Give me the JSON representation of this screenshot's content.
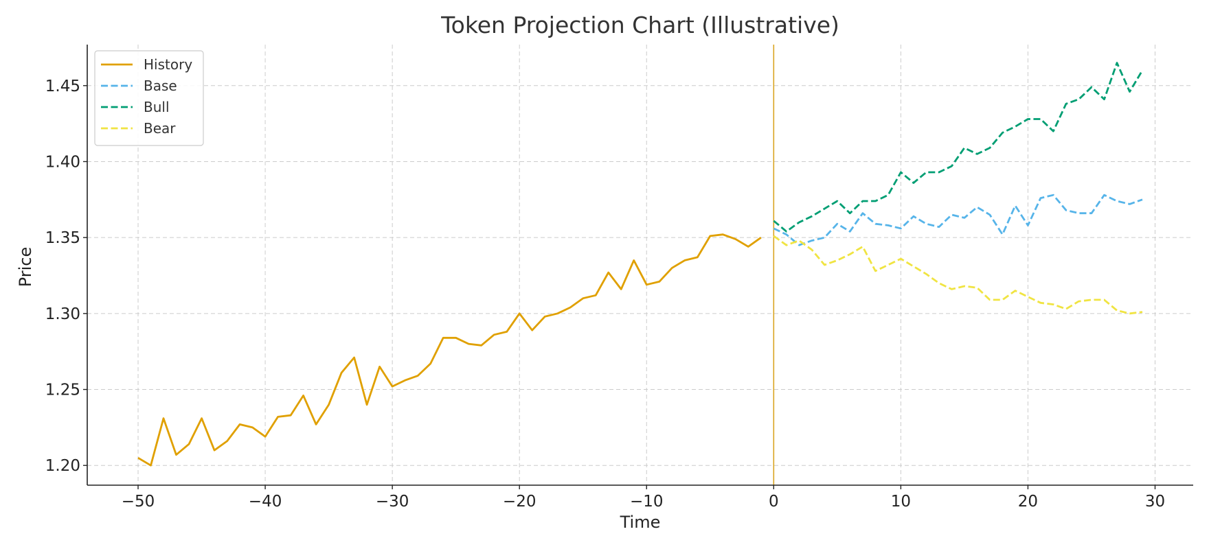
{
  "chart_data": {
    "type": "line",
    "title": "Token Projection Chart (Illustrative)",
    "xlabel": "Time",
    "ylabel": "Price",
    "xlim": [
      -54,
      33
    ],
    "ylim": [
      1.187,
      1.477
    ],
    "xticks": [
      -50,
      -40,
      -30,
      -20,
      -10,
      0,
      10,
      20,
      30
    ],
    "yticks": [
      1.2,
      1.25,
      1.3,
      1.35,
      1.4,
      1.45
    ],
    "grid": true,
    "legend_position": "top-left",
    "vline": {
      "x": 0,
      "color": "#DAA520"
    },
    "series": [
      {
        "name": "History",
        "color": "#E0A000",
        "style": "solid",
        "x": [
          -50,
          -49,
          -48,
          -47,
          -46,
          -45,
          -44,
          -43,
          -42,
          -41,
          -40,
          -39,
          -38,
          -37,
          -36,
          -35,
          -34,
          -33,
          -32,
          -31,
          -30,
          -29,
          -28,
          -27,
          -26,
          -25,
          -24,
          -23,
          -22,
          -21,
          -20,
          -19,
          -18,
          -17,
          -16,
          -15,
          -14,
          -13,
          -12,
          -11,
          -10,
          -9,
          -8,
          -7,
          -6,
          -5,
          -4,
          -3,
          -2,
          -1
        ],
        "y": [
          1.205,
          1.2,
          1.231,
          1.207,
          1.214,
          1.231,
          1.21,
          1.216,
          1.227,
          1.225,
          1.219,
          1.232,
          1.233,
          1.246,
          1.227,
          1.24,
          1.261,
          1.271,
          1.24,
          1.265,
          1.252,
          1.256,
          1.259,
          1.267,
          1.284,
          1.284,
          1.28,
          1.279,
          1.286,
          1.288,
          1.3,
          1.289,
          1.298,
          1.3,
          1.304,
          1.31,
          1.312,
          1.327,
          1.316,
          1.335,
          1.319,
          1.321,
          1.33,
          1.335,
          1.337,
          1.351,
          1.352,
          1.349,
          1.344,
          1.35
        ]
      },
      {
        "name": "Base",
        "color": "#56B4E9",
        "style": "dashed",
        "x": [
          0,
          1,
          2,
          3,
          4,
          5,
          6,
          7,
          8,
          9,
          10,
          11,
          12,
          13,
          14,
          15,
          16,
          17,
          18,
          19,
          20,
          21,
          22,
          23,
          24,
          25,
          26,
          27,
          28,
          29
        ],
        "y": [
          1.356,
          1.352,
          1.345,
          1.348,
          1.35,
          1.359,
          1.354,
          1.366,
          1.359,
          1.358,
          1.356,
          1.364,
          1.359,
          1.357,
          1.365,
          1.363,
          1.37,
          1.365,
          1.352,
          1.371,
          1.358,
          1.376,
          1.378,
          1.368,
          1.366,
          1.366,
          1.378,
          1.374,
          1.372,
          1.375
        ]
      },
      {
        "name": "Bull",
        "color": "#009E73",
        "style": "dashed",
        "x": [
          0,
          1,
          2,
          3,
          4,
          5,
          6,
          7,
          8,
          9,
          10,
          11,
          12,
          13,
          14,
          15,
          16,
          17,
          18,
          19,
          20,
          21,
          22,
          23,
          24,
          25,
          26,
          27,
          28,
          29
        ],
        "y": [
          1.361,
          1.354,
          1.36,
          1.364,
          1.369,
          1.374,
          1.366,
          1.374,
          1.374,
          1.378,
          1.393,
          1.386,
          1.393,
          1.393,
          1.397,
          1.409,
          1.405,
          1.409,
          1.419,
          1.423,
          1.428,
          1.428,
          1.42,
          1.438,
          1.441,
          1.449,
          1.441,
          1.465,
          1.446,
          1.46
        ]
      },
      {
        "name": "Bear",
        "color": "#F0E442",
        "style": "dashed",
        "x": [
          0,
          1,
          2,
          3,
          4,
          5,
          6,
          7,
          8,
          9,
          10,
          11,
          12,
          13,
          14,
          15,
          16,
          17,
          18,
          19,
          20,
          21,
          22,
          23,
          24,
          25,
          26,
          27,
          28,
          29
        ],
        "y": [
          1.351,
          1.345,
          1.348,
          1.342,
          1.332,
          1.335,
          1.339,
          1.344,
          1.328,
          1.332,
          1.336,
          1.331,
          1.326,
          1.32,
          1.316,
          1.318,
          1.317,
          1.309,
          1.309,
          1.315,
          1.311,
          1.307,
          1.306,
          1.303,
          1.308,
          1.309,
          1.309,
          1.302,
          1.3,
          1.301
        ]
      }
    ]
  }
}
